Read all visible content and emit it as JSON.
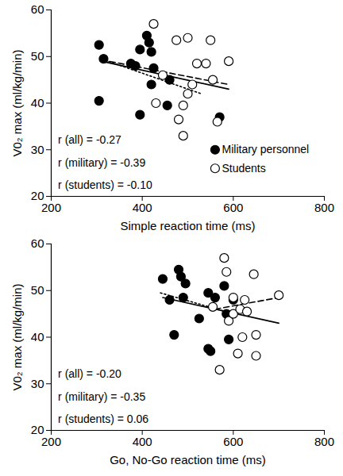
{
  "chart_data": [
    {
      "type": "scatter",
      "x_label": "Simple reaction time (ms)",
      "y_label": "V0₂ max (ml/kg/min)",
      "xlim": [
        200,
        800
      ],
      "xticks": [
        200,
        400,
        600,
        800
      ],
      "ylim": [
        20,
        60
      ],
      "yticks": [
        20,
        30,
        40,
        50,
        60
      ],
      "legend": "bottom-right",
      "annotations": [
        "r (all) = -0.27",
        "r (military) = -0.39",
        "r (students) = -0.10"
      ],
      "series": [
        {
          "name": "Military personnel",
          "type": "scatter",
          "marker": "filled",
          "color": "#000000",
          "x": [
            305,
            305,
            315,
            375,
            385,
            395,
            395,
            410,
            415,
            420,
            420,
            425,
            455,
            460,
            570
          ],
          "values": [
            52.5,
            40.5,
            49.5,
            48.5,
            48,
            51.5,
            37.5,
            54.5,
            53,
            51,
            44,
            47.5,
            39.5,
            45,
            37
          ]
        },
        {
          "name": "Students",
          "type": "scatter",
          "marker": "open",
          "color": "#000000",
          "x": [
            425,
            430,
            445,
            475,
            480,
            490,
            490,
            500,
            500,
            510,
            520,
            540,
            550,
            555,
            565,
            590
          ],
          "values": [
            57,
            40,
            46,
            53.5,
            36.5,
            33,
            39.5,
            54,
            42,
            44,
            48.5,
            48.5,
            53.5,
            45,
            36,
            49
          ]
        },
        {
          "type": "line",
          "line_style": "solid",
          "color": "#000000",
          "x": [
            310,
            590
          ],
          "values": [
            49,
            43
          ]
        },
        {
          "type": "line",
          "line_style": "dashed",
          "color": "#000000",
          "x": [
            310,
            590
          ],
          "values": [
            49.3,
            44
          ]
        },
        {
          "type": "line",
          "line_style": "dotted",
          "color": "#000000",
          "x": [
            310,
            530
          ],
          "values": [
            49.5,
            42
          ]
        }
      ]
    },
    {
      "type": "scatter",
      "x_label": "Go, No-Go reaction time (ms)",
      "y_label": "V0₂ max (ml/kg/min)",
      "xlim": [
        200,
        800
      ],
      "xticks": [
        200,
        400,
        600,
        800
      ],
      "ylim": [
        20,
        60
      ],
      "yticks": [
        20,
        30,
        40,
        50,
        60
      ],
      "annotations": [
        "r (all) = -0.20",
        "r (military) = -0.35",
        "r (students) = 0.06"
      ],
      "series": [
        {
          "name": "Military personnel",
          "type": "scatter",
          "marker": "filled",
          "color": "#000000",
          "x": [
            445,
            460,
            470,
            480,
            485,
            490,
            495,
            525,
            545,
            545,
            550,
            560,
            580,
            585,
            590,
            600
          ],
          "values": [
            52.5,
            48,
            40.5,
            54.5,
            53,
            48.5,
            51.5,
            44,
            49.5,
            37.5,
            37,
            48.5,
            51,
            45,
            39.5,
            48
          ]
        },
        {
          "name": "Students",
          "type": "scatter",
          "marker": "open",
          "color": "#000000",
          "x": [
            555,
            570,
            580,
            585,
            590,
            600,
            600,
            610,
            615,
            620,
            625,
            630,
            645,
            650,
            650,
            700
          ],
          "values": [
            46.5,
            33,
            57,
            54,
            43.5,
            48.5,
            45,
            36.5,
            46,
            40,
            48,
            45.5,
            53.5,
            36,
            40.5,
            49
          ]
        },
        {
          "type": "line",
          "line_style": "solid",
          "color": "#000000",
          "x": [
            445,
            700
          ],
          "values": [
            48.5,
            43
          ]
        },
        {
          "type": "line",
          "line_style": "dashed",
          "color": "#000000",
          "x": [
            560,
            700
          ],
          "values": [
            46,
            48.5
          ]
        },
        {
          "type": "line",
          "line_style": "dotted",
          "color": "#000000",
          "x": [
            440,
            600
          ],
          "values": [
            49.5,
            45
          ]
        }
      ]
    }
  ]
}
